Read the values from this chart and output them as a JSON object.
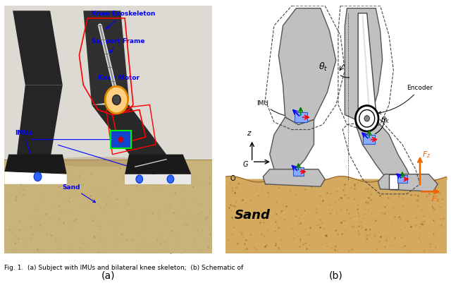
{
  "figure_width": 6.4,
  "figure_height": 4.08,
  "dpi": 100,
  "background_color": "#ffffff",
  "caption_text": "Fig. 1.  (a) Subject with IMUs and bilateral knee skeleton;  (b) Schematic of",
  "subfig_a_label": "(a)",
  "subfig_b_label": "(b)",
  "photo_bg_top": "#d8d4cc",
  "photo_bg_bottom": "#c8b888",
  "sand_color": "#d4aa60",
  "sand_color2": "#c89840",
  "leg_dark": "#2a2a2a",
  "leg_mid": "#3a3a3a",
  "leg_light": "#4a4a4a",
  "exo_color": "#c0c0c0",
  "exo_edge": "red",
  "imu_color": "#4488ff",
  "imu_edge": "#00dd00",
  "schematic_leg": "#b8b8b8",
  "schematic_edge": "#555555",
  "dashed_color": "#444444"
}
